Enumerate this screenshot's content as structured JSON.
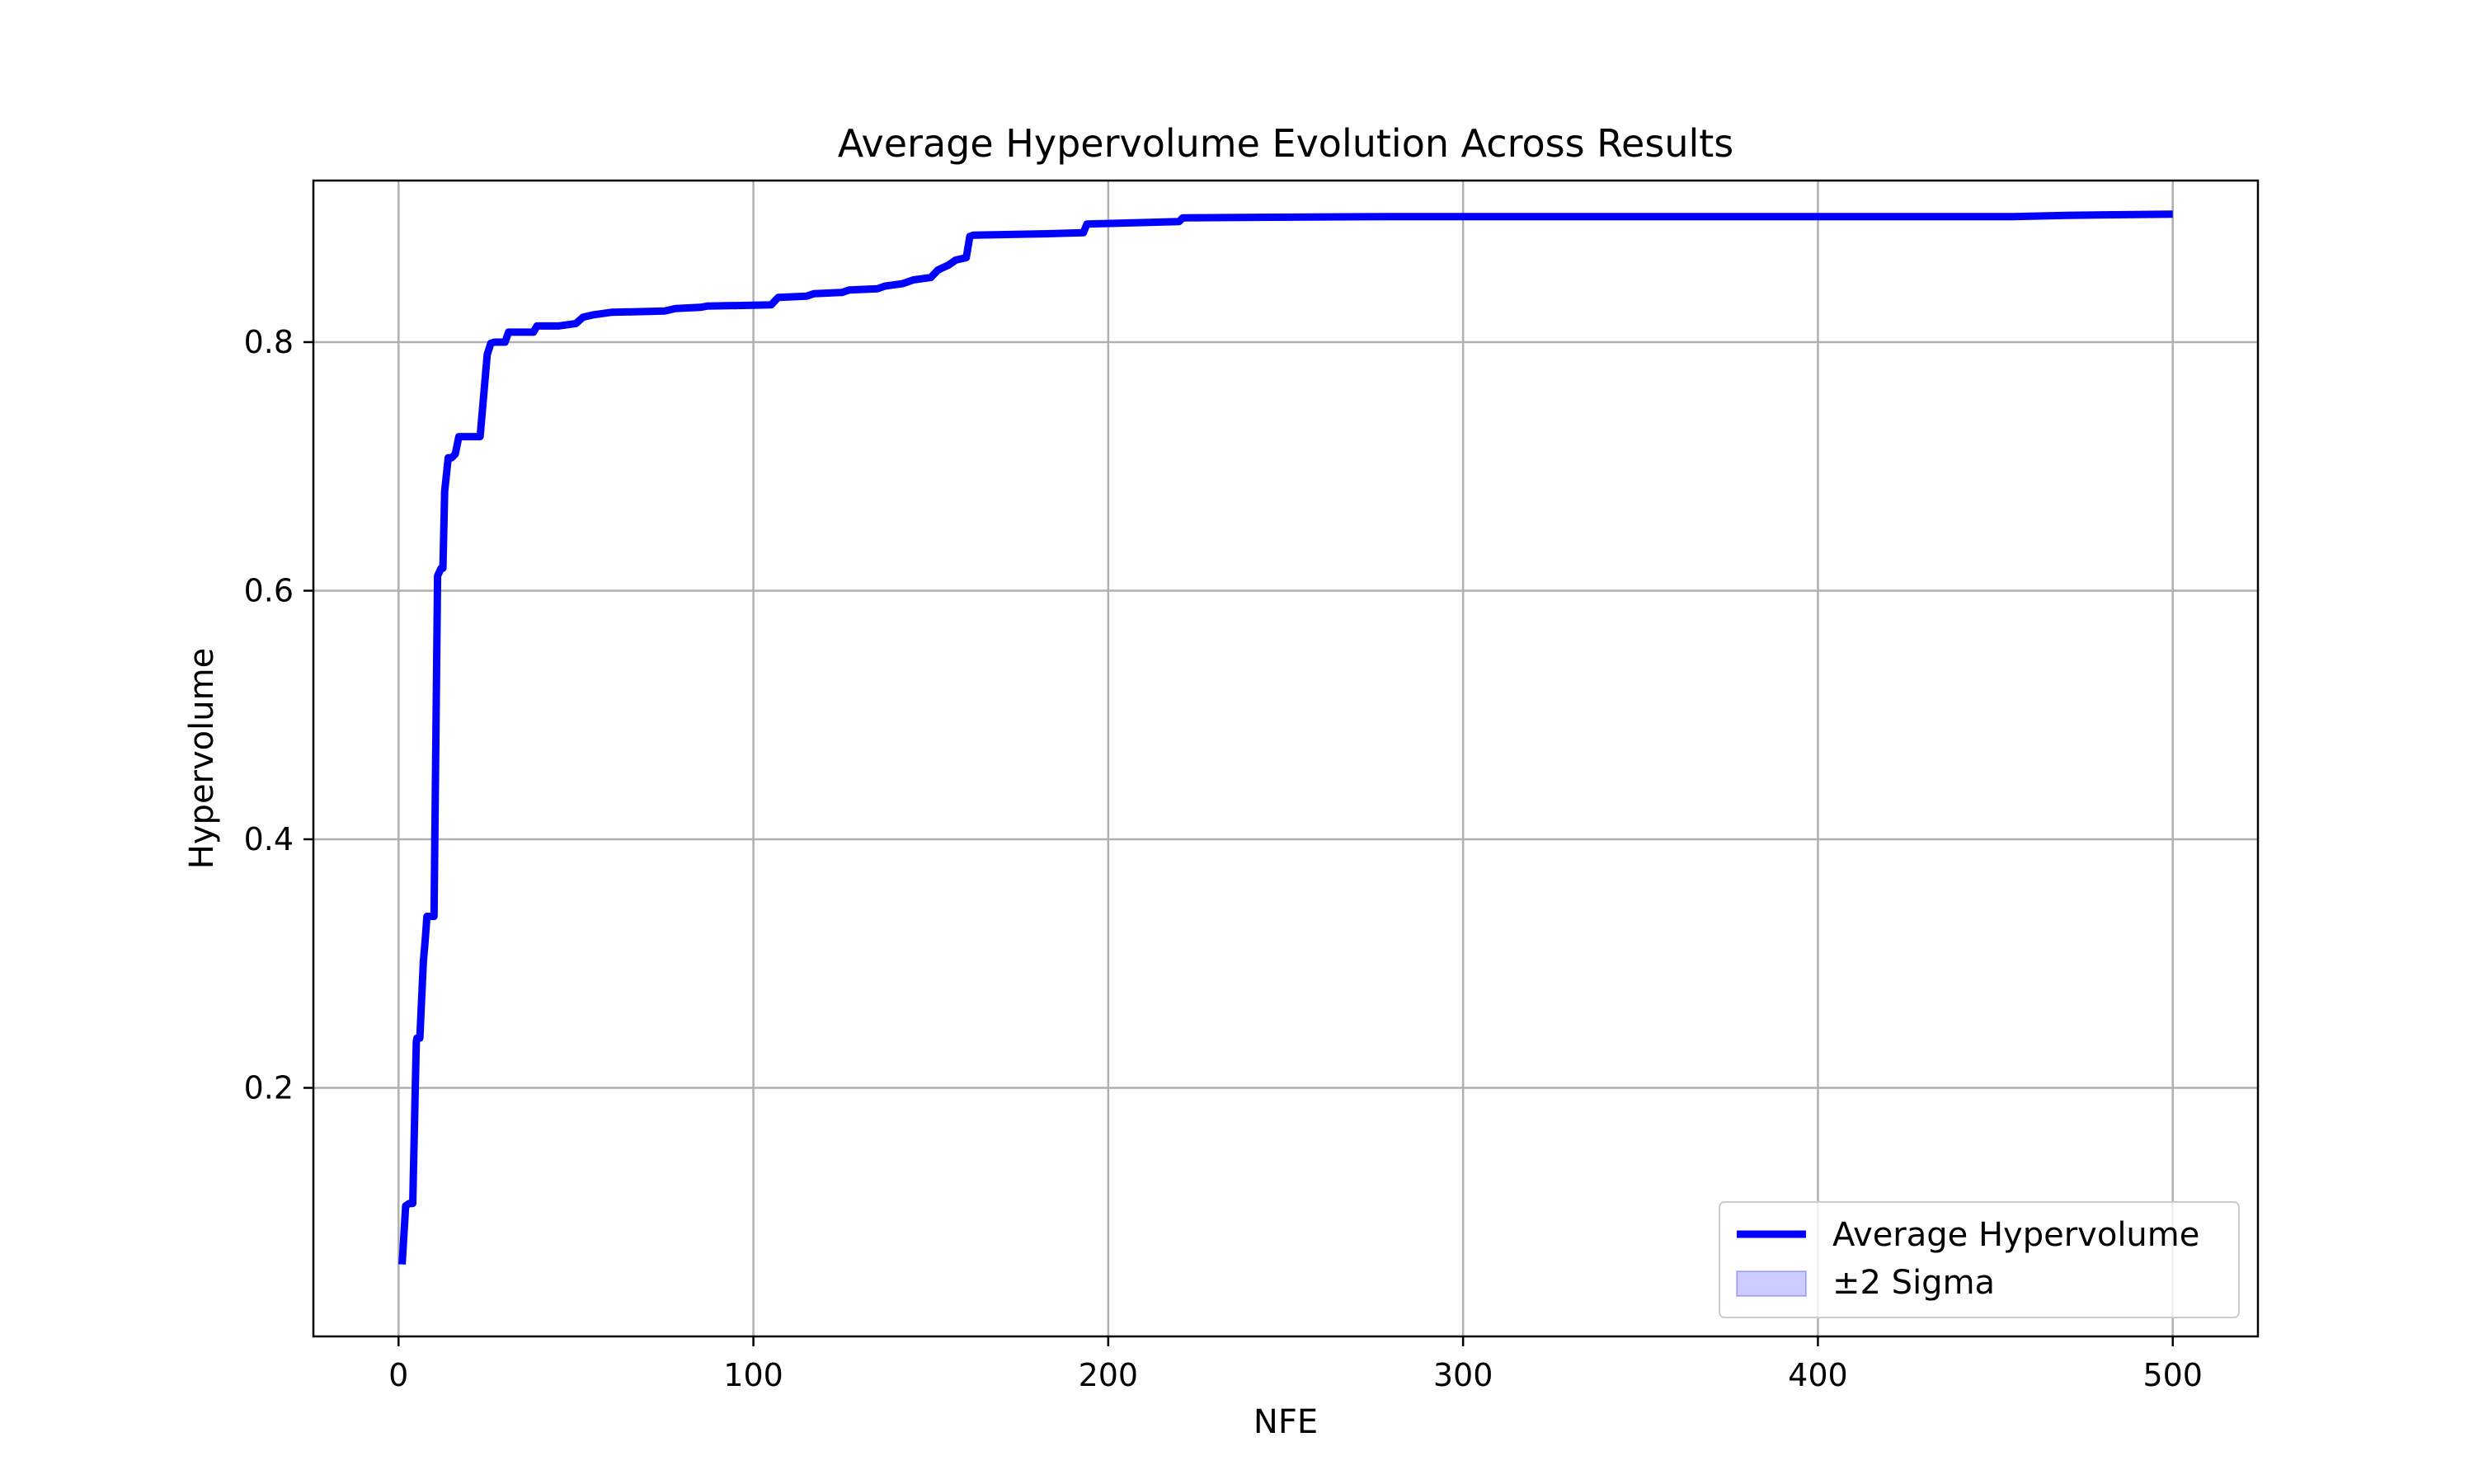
{
  "chart_data": {
    "type": "line",
    "title": "Average Hypervolume Evolution Across Results",
    "xlabel": "NFE",
    "ylabel": "Hypervolume",
    "xlim": [
      -24,
      524
    ],
    "ylim": [
      0.0,
      0.93
    ],
    "xticks": [
      0,
      100,
      200,
      300,
      400,
      500
    ],
    "yticks": [
      0.2,
      0.4,
      0.6,
      0.8
    ],
    "xtick_labels": [
      "0",
      "100",
      "200",
      "300",
      "400",
      "500"
    ],
    "ytick_labels": [
      "0.2",
      "0.4",
      "0.6",
      "0.8"
    ],
    "grid": true,
    "legend_position": "lower-right",
    "colors": {
      "line": "#0000ff",
      "band_fill": "#0000ff",
      "grid": "#b0b0b0",
      "axes": "#000000"
    },
    "series": [
      {
        "name": "Average Hypervolume",
        "kind": "line",
        "x": [
          1,
          2,
          3,
          4,
          5,
          5.2,
          6,
          7,
          7.5,
          8,
          9,
          10,
          11,
          12,
          12.5,
          13,
          14,
          15,
          16,
          17,
          18,
          19,
          20,
          23,
          25,
          26,
          27,
          30,
          31,
          38,
          39,
          45,
          50,
          52,
          55,
          60,
          75,
          78,
          85,
          87,
          105,
          107,
          115,
          117,
          125,
          127,
          135,
          137,
          142,
          145,
          150,
          152,
          155,
          157,
          160,
          161,
          162,
          180,
          193,
          194,
          220,
          221,
          280,
          455,
          470,
          500
        ],
        "y": [
          0.058,
          0.105,
          0.107,
          0.107,
          0.237,
          0.24,
          0.24,
          0.302,
          0.318,
          0.338,
          0.338,
          0.338,
          0.612,
          0.618,
          0.618,
          0.68,
          0.707,
          0.707,
          0.71,
          0.724,
          0.724,
          0.724,
          0.724,
          0.724,
          0.79,
          0.799,
          0.8,
          0.8,
          0.808,
          0.808,
          0.813,
          0.813,
          0.815,
          0.82,
          0.822,
          0.824,
          0.825,
          0.827,
          0.828,
          0.829,
          0.83,
          0.836,
          0.837,
          0.839,
          0.84,
          0.842,
          0.843,
          0.845,
          0.847,
          0.85,
          0.852,
          0.858,
          0.862,
          0.866,
          0.868,
          0.885,
          0.886,
          0.887,
          0.888,
          0.895,
          0.897,
          0.9,
          0.901,
          0.901,
          0.902,
          0.903
        ]
      },
      {
        "name": "±2 Sigma",
        "kind": "band"
      }
    ]
  }
}
